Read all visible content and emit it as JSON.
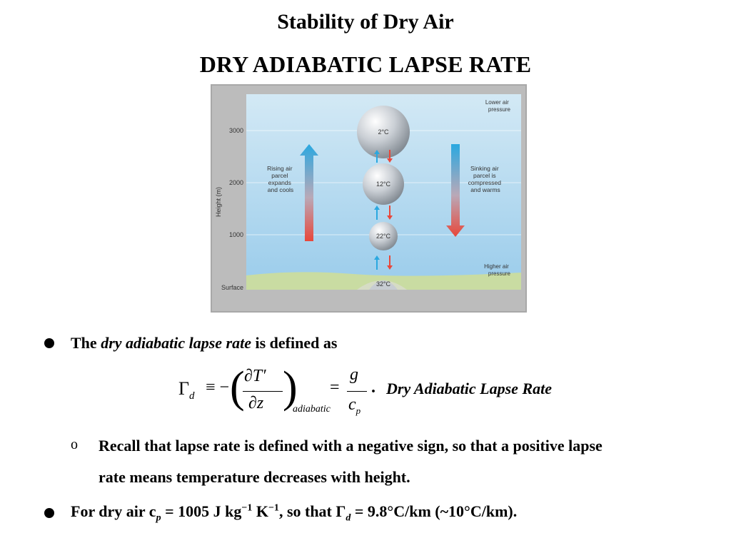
{
  "slide": {
    "title": "Stability of Dry Air",
    "subtitle": "DRY ADIABATIC LAPSE RATE"
  },
  "figure": {
    "y_axis_label": "Height (m)",
    "y_ticks": [
      "3000",
      "2000",
      "1000",
      "Surface"
    ],
    "top_right_label": [
      "Lower air",
      "pressure"
    ],
    "bottom_right_label": [
      "Higher air",
      "pressure"
    ],
    "left_label": [
      "Rising air",
      "parcel",
      "expands",
      "and cools"
    ],
    "right_label": [
      "Sinking air",
      "parcel is",
      "compressed",
      "and warms"
    ],
    "parcels": [
      "2°C",
      "12°C",
      "22°C",
      "32°C"
    ],
    "colors": {
      "sky_top": "#cfe6f4",
      "sky_bottom": "#9ccfeb",
      "warm": "#e8473a",
      "cool": "#2aa8e0",
      "ground": "#c9dca2"
    }
  },
  "bullets": [
    {
      "prefix": "The ",
      "emph": "dry adiabatic lapse rate",
      "suffix": " is defined as"
    },
    {
      "text": "For dry air c",
      "sub_p": "p",
      "mid": " = 1005 J kg",
      "sup1": "−1",
      "mid2": " K",
      "sup2": "−1",
      "tail": ", so that Γ",
      "sub_d": "d",
      "end": " = 9.8°C/km (~10°C/km)."
    }
  ],
  "equation": {
    "lhs": "Γ",
    "lhs_sub": "d",
    "equiv": "≡ −",
    "num": "∂T′",
    "den": "∂z",
    "cond": "adiabatic",
    "rhs_num": "g",
    "rhs_den": "c",
    "rhs_den_sub": "p",
    "label": "Dry Adiabatic Lapse Rate"
  },
  "sub_bullet": {
    "marker": "o",
    "line1": "Recall that lapse rate is defined with a negative sign, so that a positive lapse",
    "line2": "rate means temperature decreases with height."
  }
}
